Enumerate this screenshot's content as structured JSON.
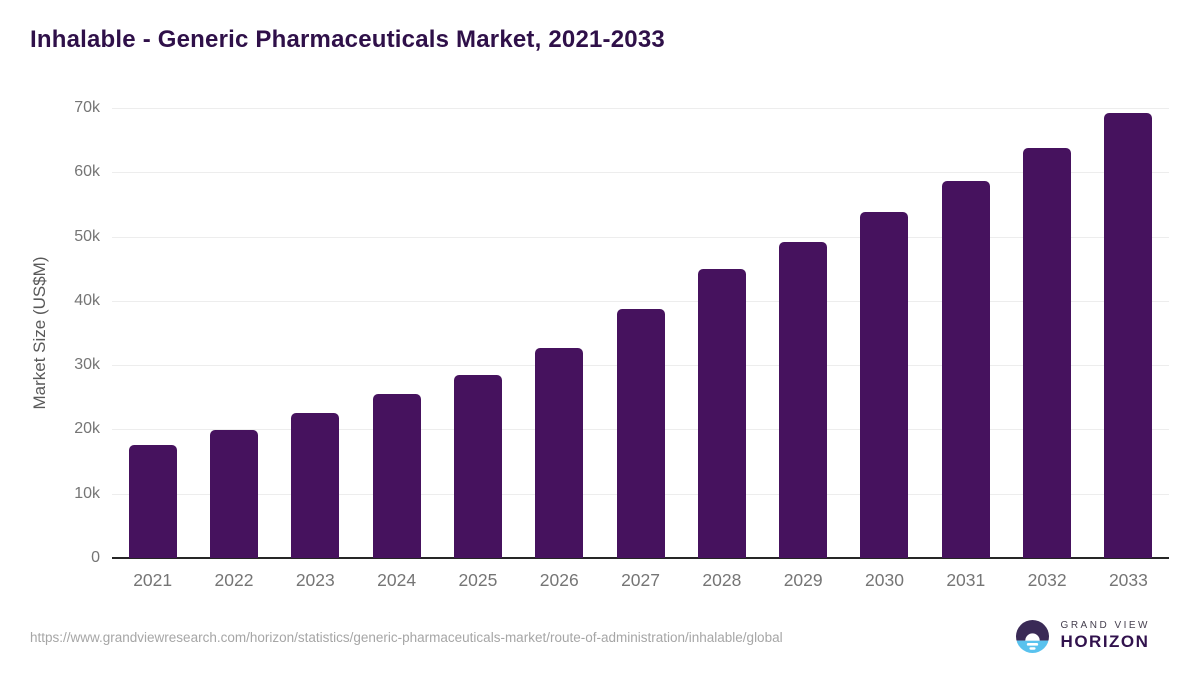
{
  "title": "Inhalable - Generic Pharmaceuticals Market, 2021-2033",
  "chart_data": {
    "type": "bar",
    "title": "Inhalable - Generic Pharmaceuticals Market, 2021-2033",
    "categories": [
      "2021",
      "2022",
      "2023",
      "2024",
      "2025",
      "2026",
      "2027",
      "2028",
      "2029",
      "2030",
      "2031",
      "2032",
      "2033"
    ],
    "values": [
      17600,
      19900,
      22500,
      25500,
      28500,
      32700,
      38800,
      45000,
      49200,
      53800,
      58600,
      63800,
      69300
    ],
    "series_name": "Market Size",
    "xlabel": "",
    "ylabel": "Market Size (US$M)",
    "ylim": [
      0,
      70000
    ],
    "ytick_values": [
      0,
      10000,
      20000,
      30000,
      40000,
      50000,
      60000,
      70000
    ],
    "ytick_labels": [
      "0",
      "10k",
      "20k",
      "30k",
      "40k",
      "50k",
      "60k",
      "70k"
    ],
    "grid": "horizontal",
    "legend_position": "none",
    "bar_color": "#46125e"
  },
  "colors": {
    "bar": "#46125e",
    "title": "#2f1049",
    "axis_line": "#262626",
    "gridline": "#ededed",
    "tick_label": "#757575",
    "axis_title": "#595959",
    "url_text": "#a6a6a6",
    "logo_circle_top": "#3a2a56",
    "logo_circle_bottom": "#59c2ee",
    "logo_text": "#31124d"
  },
  "footer": {
    "source_url": "https://www.grandviewresearch.com/horizon/statistics/generic-pharmaceuticals-market/route-of-administration/inhalable/global",
    "logo": {
      "top_text": "GRAND VIEW",
      "bottom_text": "HORIZON"
    }
  }
}
